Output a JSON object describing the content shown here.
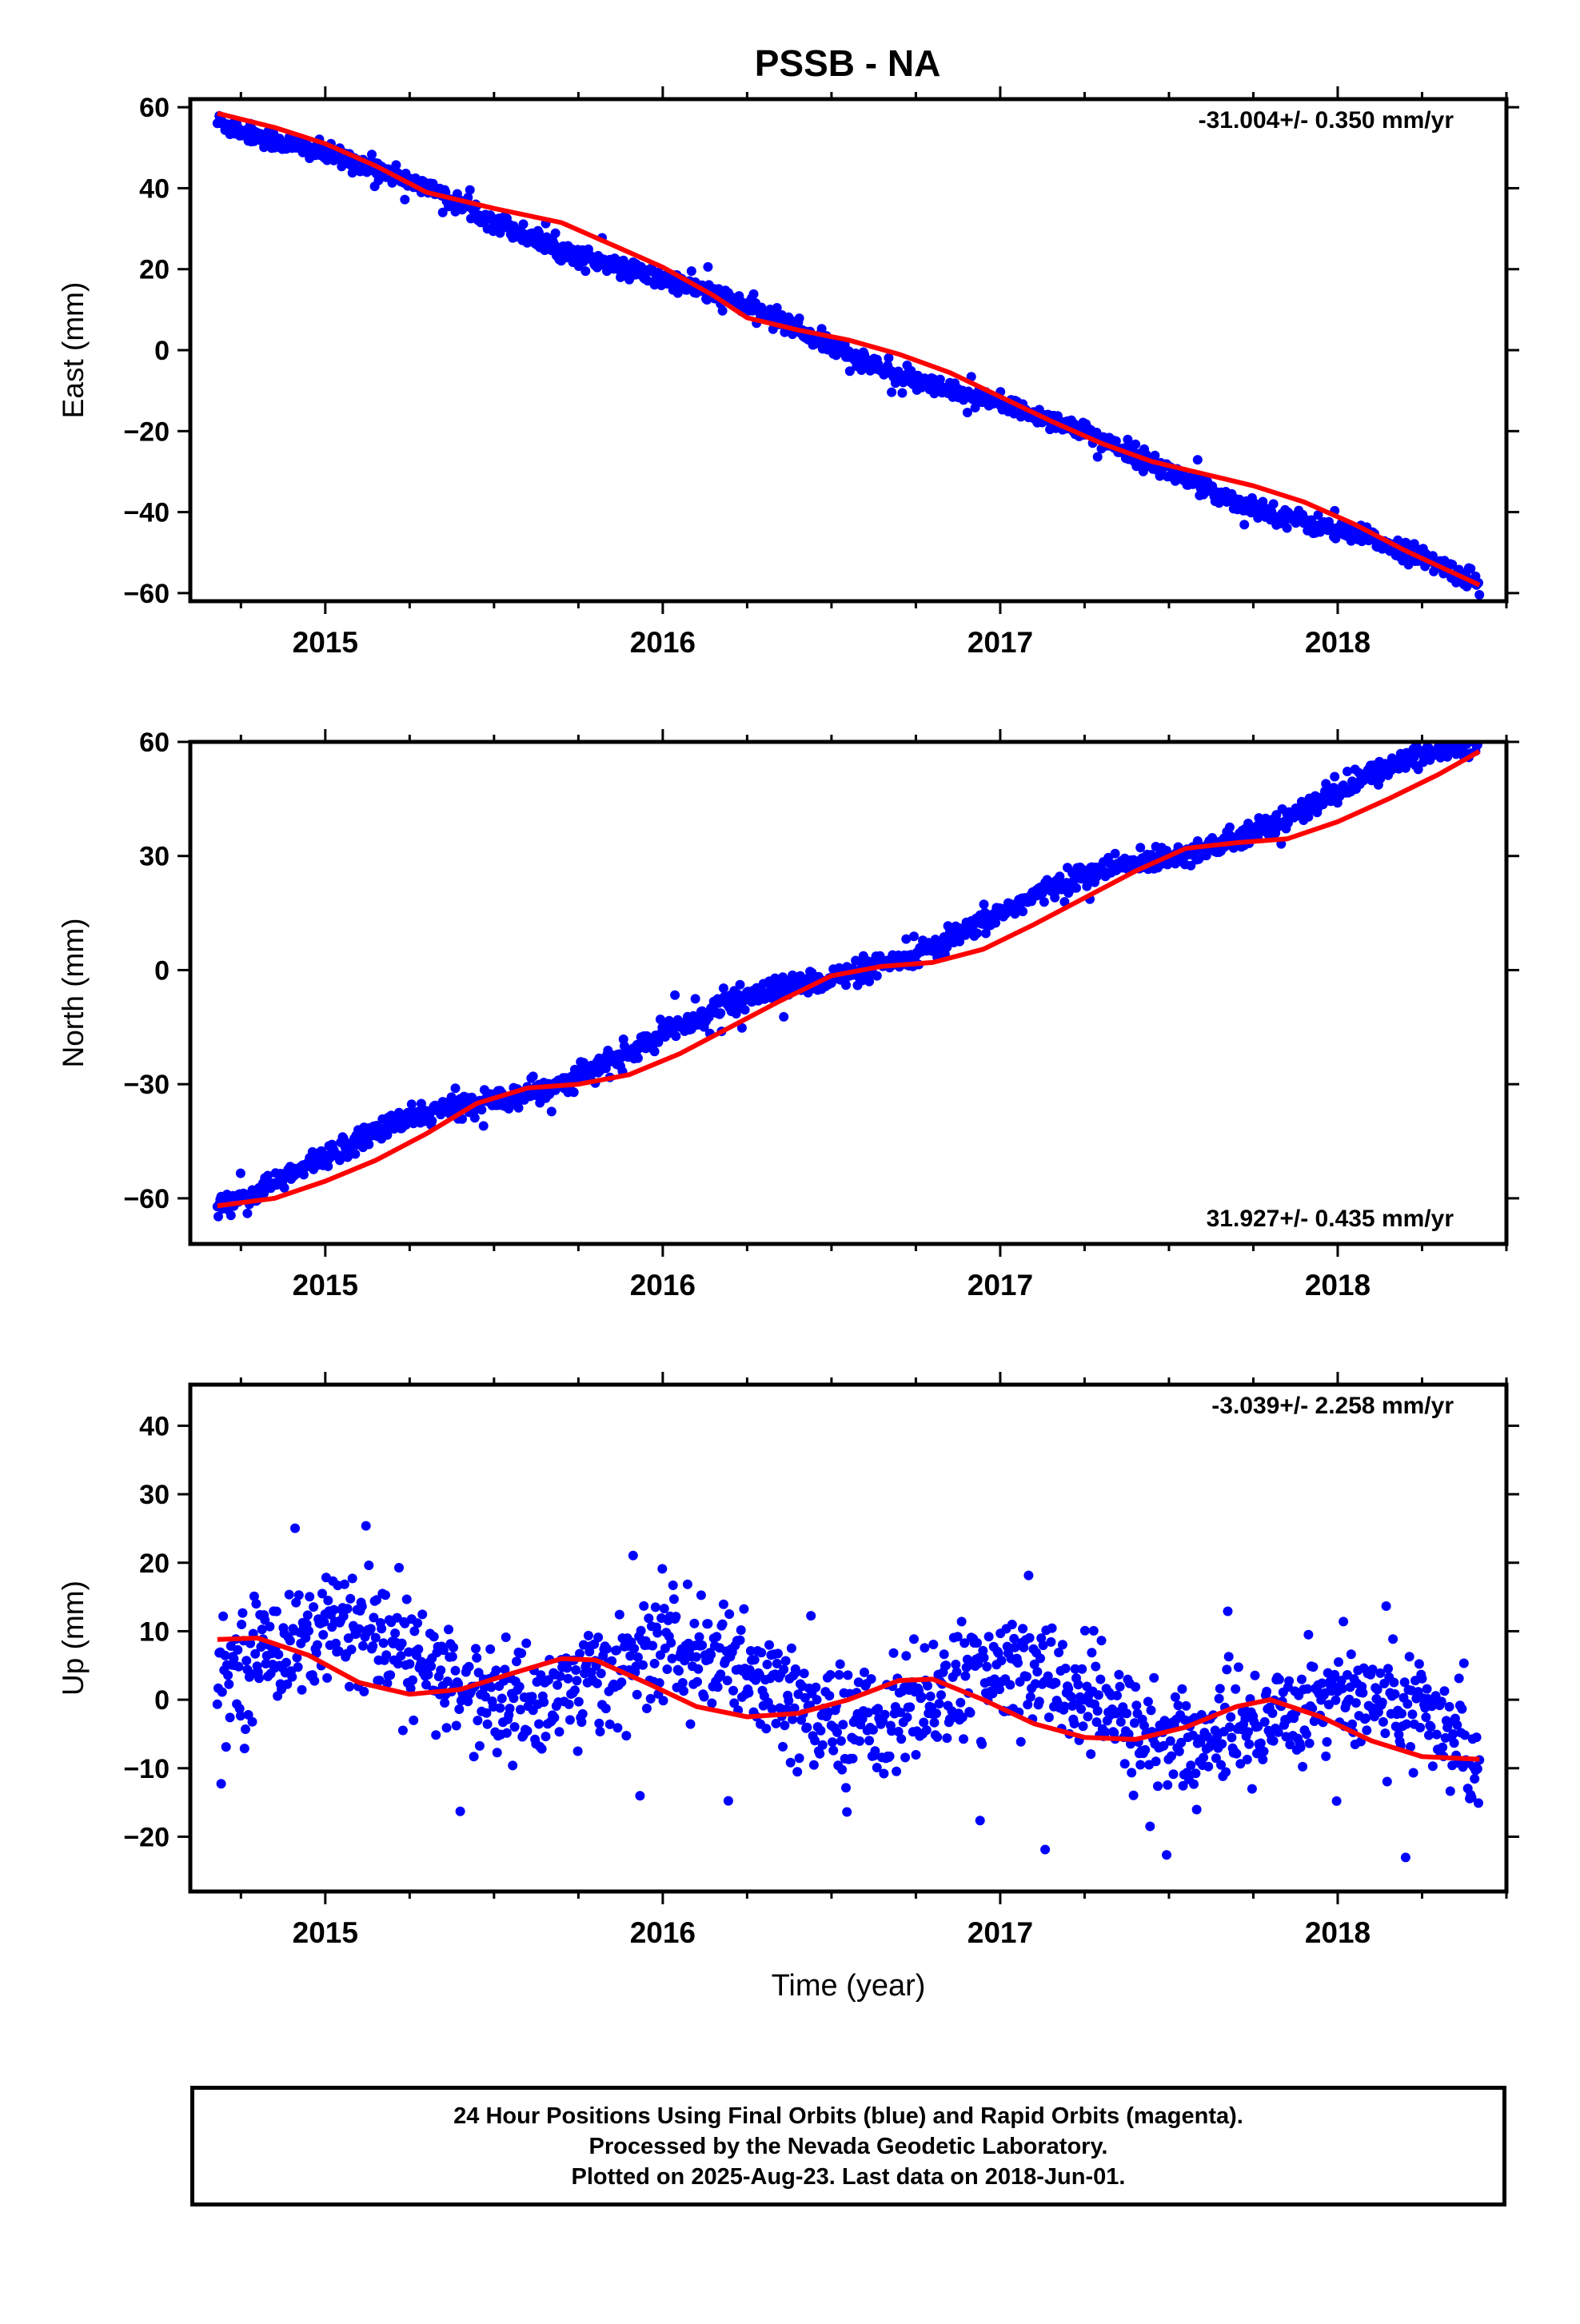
{
  "title": "PSSB - NA",
  "chart_data": [
    {
      "type": "scatter",
      "ylabel": "East (mm)",
      "xlabel": "",
      "xlim": [
        2014.6,
        2018.5
      ],
      "ylim": [
        -62,
        62
      ],
      "yticks": [
        -60,
        -40,
        -20,
        0,
        20,
        40,
        60
      ],
      "xticks": [
        2015,
        2016,
        2017,
        2018
      ],
      "rate_label": "-31.004+/- 0.350 mm/yr",
      "rate_position": "top-right",
      "series": [
        {
          "color": "#0000ff",
          "marker": "dot",
          "start": 2014.68,
          "end": 2018.42,
          "intercept": 0.0,
          "reference_year": 2016.55,
          "slope": -31.004,
          "annual_amp": 1.6,
          "annual_phase": 0.3,
          "noise": 1.2,
          "count": 1300
        },
        {
          "color": "#ff0000",
          "marker": "line",
          "x": [
            2014.68,
            2014.85,
            2015.0,
            2015.15,
            2015.3,
            2015.5,
            2015.7,
            2015.85,
            2016.0,
            2016.15,
            2016.25,
            2016.4,
            2016.55,
            2016.7,
            2016.85,
            2017.0,
            2017.15,
            2017.3,
            2017.45,
            2017.6,
            2017.75,
            2017.9,
            2018.05,
            2018.2,
            2018.42
          ],
          "y": [
            58.5,
            55.0,
            51.0,
            45.5,
            39.0,
            35.0,
            31.5,
            26.0,
            20.5,
            13.5,
            8.0,
            5.0,
            2.5,
            -1.0,
            -5.5,
            -11.5,
            -17.5,
            -23.0,
            -27.5,
            -30.5,
            -33.5,
            -37.5,
            -43.0,
            -49.5,
            -58.0
          ]
        }
      ]
    },
    {
      "type": "scatter",
      "ylabel": "North (mm)",
      "xlabel": "",
      "xlim": [
        2014.6,
        2018.5
      ],
      "ylim": [
        -72,
        60
      ],
      "yticks": [
        -60,
        -30,
        0,
        30,
        60
      ],
      "xticks": [
        2015,
        2016,
        2017,
        2018
      ],
      "rate_label": "31.927+/- 0.435 mm/yr",
      "rate_position": "bottom-right",
      "series": [
        {
          "color": "#0000ff",
          "marker": "dot",
          "start": 2014.68,
          "end": 2018.42,
          "intercept": 0.0,
          "reference_year": 2016.55,
          "slope": 31.927,
          "annual_amp": 2.5,
          "annual_phase": 0.2,
          "noise": 1.5,
          "count": 1300
        },
        {
          "color": "#ff0000",
          "marker": "line",
          "x": [
            2014.68,
            2014.85,
            2015.0,
            2015.15,
            2015.3,
            2015.45,
            2015.6,
            2015.75,
            2015.9,
            2016.05,
            2016.2,
            2016.35,
            2016.5,
            2016.65,
            2016.8,
            2016.95,
            2017.1,
            2017.25,
            2017.4,
            2017.55,
            2017.7,
            2017.85,
            2018.0,
            2018.15,
            2018.3,
            2018.42
          ],
          "y": [
            -62.0,
            -60.0,
            -55.5,
            -50.0,
            -43.0,
            -35.0,
            -31.0,
            -30.0,
            -27.5,
            -22.0,
            -15.0,
            -8.0,
            -1.5,
            1.0,
            2.0,
            5.5,
            12.0,
            19.0,
            26.0,
            32.0,
            33.5,
            34.5,
            39.0,
            45.0,
            51.5,
            57.5
          ]
        }
      ]
    },
    {
      "type": "scatter",
      "ylabel": "Up (mm)",
      "xlabel": "Time (year)",
      "xlim": [
        2014.6,
        2018.5
      ],
      "ylim": [
        -28,
        46
      ],
      "yticks": [
        -20,
        -10,
        0,
        10,
        20,
        30,
        40
      ],
      "xticks": [
        2015,
        2016,
        2017,
        2018
      ],
      "rate_label": "-3.039+/- 2.258 mm/yr",
      "rate_position": "top-right",
      "series": [
        {
          "color": "#0000ff",
          "marker": "dot",
          "start": 2014.68,
          "end": 2018.42,
          "intercept": 1.0,
          "reference_year": 2016.55,
          "slope": -3.039,
          "annual_amp": 4.5,
          "annual_phase": 1.3,
          "noise": 4.2,
          "count": 1300
        },
        {
          "color": "#ff0000",
          "marker": "line",
          "x": [
            2014.68,
            2014.8,
            2014.95,
            2015.1,
            2015.25,
            2015.4,
            2015.55,
            2015.7,
            2015.8,
            2015.95,
            2016.1,
            2016.25,
            2016.4,
            2016.55,
            2016.7,
            2016.8,
            2016.95,
            2017.1,
            2017.25,
            2017.4,
            2017.55,
            2017.7,
            2017.8,
            2017.95,
            2018.1,
            2018.25,
            2018.42
          ],
          "y": [
            8.8,
            9.0,
            6.5,
            2.5,
            0.8,
            1.5,
            3.8,
            6.0,
            5.8,
            2.5,
            -1.0,
            -2.5,
            -2.0,
            0.0,
            2.8,
            3.0,
            0.0,
            -3.5,
            -5.5,
            -5.8,
            -4.0,
            -1.0,
            0.0,
            -2.5,
            -6.0,
            -8.3,
            -8.7
          ]
        }
      ]
    }
  ],
  "footer": {
    "line1": "24 Hour Positions Using Final Orbits (blue) and Rapid Orbits (magenta).",
    "line2": "Processed by the Nevada Geodetic Laboratory.",
    "line3": "Plotted on 2025-Aug-23. Last data on 2018-Jun-01."
  }
}
